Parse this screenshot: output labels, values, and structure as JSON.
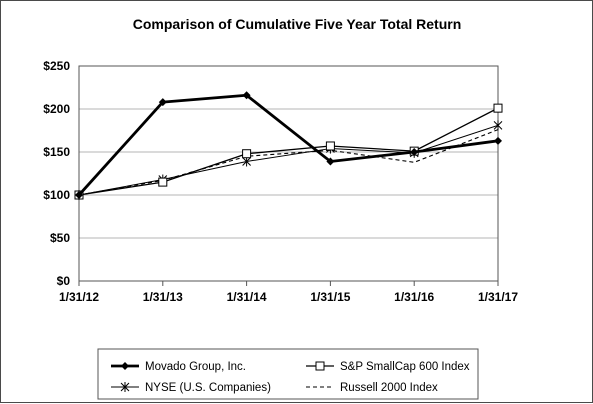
{
  "chart_data": {
    "type": "line",
    "title": "Comparison of Cumulative Five Year Total Return",
    "xlabel": "",
    "ylabel": "",
    "categories": [
      "1/31/12",
      "1/31/13",
      "1/31/14",
      "1/31/15",
      "1/31/16",
      "1/31/17"
    ],
    "y_ticks": [
      "$0",
      "$50",
      "$100",
      "$150",
      "$200",
      "$250"
    ],
    "ylim": [
      0,
      250
    ],
    "grid": true,
    "legend_position": "bottom",
    "series": [
      {
        "name": "Movado Group, Inc.",
        "values": [
          100,
          208,
          216,
          139,
          150,
          163
        ],
        "marker": "diamond",
        "line": "solid-thick",
        "color": "#000000"
      },
      {
        "name": "S&P SmallCap 600 Index",
        "values": [
          100,
          115,
          148,
          157,
          151,
          201
        ],
        "marker": "square-open",
        "line": "solid",
        "color": "#000000"
      },
      {
        "name": "NYSE (U.S. Companies)",
        "values": [
          100,
          118,
          139,
          154,
          149,
          181
        ],
        "marker": "asterisk",
        "line": "solid-thin",
        "color": "#000000"
      },
      {
        "name": "Russell 2000 Index",
        "values": [
          100,
          117,
          145,
          152,
          138,
          176
        ],
        "marker": "none",
        "line": "dashed",
        "color": "#000000"
      }
    ]
  }
}
